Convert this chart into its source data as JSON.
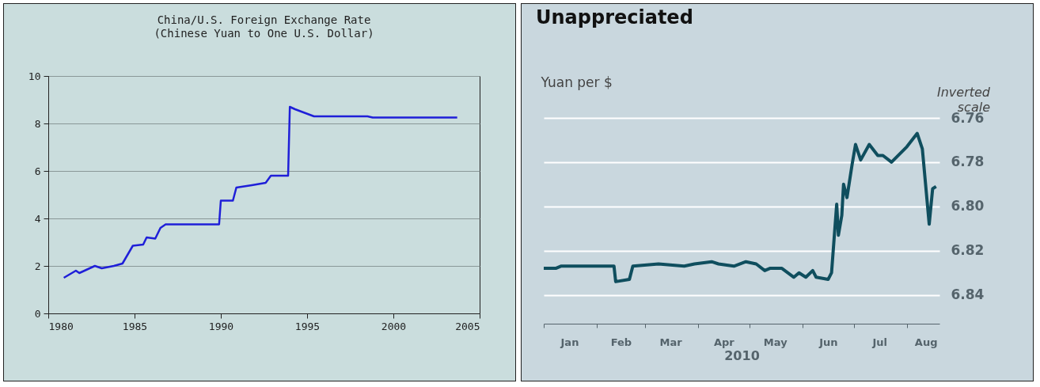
{
  "chart_data": [
    {
      "type": "line",
      "title": "China/U.S. Foreign Exchange Rate",
      "subtitle": "(Chinese Yuan to One U.S. Dollar)",
      "x": [
        1980.9,
        1981.6,
        1981.8,
        1982.7,
        1983.1,
        1983.8,
        1984.3,
        1984.9,
        1985.5,
        1985.7,
        1986.2,
        1986.5,
        1986.8,
        1989.9,
        1990.0,
        1990.7,
        1990.9,
        1991.8,
        1992.6,
        1992.9,
        1993.9,
        1994.0,
        1994.3,
        1995.4,
        1998.5,
        1998.8,
        2003.7
      ],
      "series": [
        {
          "color": "#1f1fd8",
          "values": [
            1.5,
            1.8,
            1.7,
            2.0,
            1.9,
            2.0,
            2.1,
            2.85,
            2.9,
            3.2,
            3.15,
            3.6,
            3.75,
            3.75,
            4.75,
            4.75,
            5.3,
            5.4,
            5.5,
            5.8,
            5.8,
            8.7,
            8.6,
            8.3,
            8.3,
            8.25,
            8.25
          ]
        }
      ],
      "xlim": [
        1980,
        2005
      ],
      "xticks": [
        1980,
        1985,
        1990,
        1995,
        2000,
        2005
      ],
      "ylim": [
        0,
        10
      ],
      "yticks": [
        0,
        2,
        4,
        6,
        8,
        10
      ],
      "grid": "y"
    },
    {
      "type": "line",
      "title": "Unappreciated",
      "ylabel": "Yuan per $",
      "xlabel": "2010",
      "annotations": [
        "Inverted scale"
      ],
      "x": [
        "2010-01-01",
        "2010-01-08",
        "2010-01-11",
        "2010-01-21",
        "2010-02-09",
        "2010-02-11",
        "2010-02-12",
        "2010-02-20",
        "2010-02-22",
        "2010-03-09",
        "2010-03-24",
        "2010-03-30",
        "2010-04-09",
        "2010-04-13",
        "2010-04-22",
        "2010-04-29",
        "2010-05-05",
        "2010-05-10",
        "2010-05-13",
        "2010-05-20",
        "2010-05-27",
        "2010-05-30",
        "2010-06-03",
        "2010-06-07",
        "2010-06-09",
        "2010-06-16",
        "2010-06-18",
        "2010-06-21",
        "2010-06-22",
        "2010-06-24",
        "2010-06-25",
        "2010-06-27",
        "2010-06-30",
        "2010-07-02",
        "2010-07-05",
        "2010-07-10",
        "2010-07-15",
        "2010-07-18",
        "2010-07-23",
        "2010-08-01",
        "2010-08-07",
        "2010-08-10",
        "2010-08-12",
        "2010-08-14",
        "2010-08-16",
        "2010-08-18"
      ],
      "series": [
        {
          "color": "#0f4e5e",
          "values": [
            6.828,
            6.828,
            6.827,
            6.827,
            6.827,
            6.827,
            6.834,
            6.833,
            6.827,
            6.826,
            6.827,
            6.826,
            6.825,
            6.826,
            6.827,
            6.825,
            6.826,
            6.829,
            6.828,
            6.828,
            6.832,
            6.83,
            6.832,
            6.829,
            6.832,
            6.833,
            6.83,
            6.799,
            6.813,
            6.804,
            6.79,
            6.796,
            6.781,
            6.772,
            6.779,
            6.772,
            6.777,
            6.777,
            6.78,
            6.773,
            6.767,
            6.774,
            6.791,
            6.808,
            6.792,
            6.791
          ]
        }
      ],
      "xlim": [
        "2010-01-01",
        "2010-08-20"
      ],
      "xticks": [
        {
          "value": "2010-01-01",
          "label": null
        },
        {
          "value": "2010-01-16",
          "label": "Jan"
        },
        {
          "value": "2010-02-01",
          "label": null
        },
        {
          "value": "2010-02-15",
          "label": "Feb"
        },
        {
          "value": "2010-03-01",
          "label": null
        },
        {
          "value": "2010-03-16",
          "label": "Mar"
        },
        {
          "value": "2010-04-01",
          "label": null
        },
        {
          "value": "2010-04-16",
          "label": "Apr"
        },
        {
          "value": "2010-05-01",
          "label": null
        },
        {
          "value": "2010-05-16",
          "label": "May"
        },
        {
          "value": "2010-06-01",
          "label": null
        },
        {
          "value": "2010-06-16",
          "label": "Jun"
        },
        {
          "value": "2010-07-01",
          "label": null
        },
        {
          "value": "2010-07-16",
          "label": "Jul"
        },
        {
          "value": "2010-08-01",
          "label": null
        },
        {
          "value": "2010-08-12",
          "label": "Aug"
        }
      ],
      "ylim": [
        6.853,
        6.76
      ],
      "yticks": [
        {
          "value": 6.76,
          "label": "6.76"
        },
        {
          "value": 6.78,
          "label": "6.78"
        },
        {
          "value": 6.8,
          "label": "6.80"
        },
        {
          "value": 6.82,
          "label": "6.82"
        },
        {
          "value": 6.84,
          "label": "6.84"
        }
      ],
      "grid": "y"
    }
  ]
}
